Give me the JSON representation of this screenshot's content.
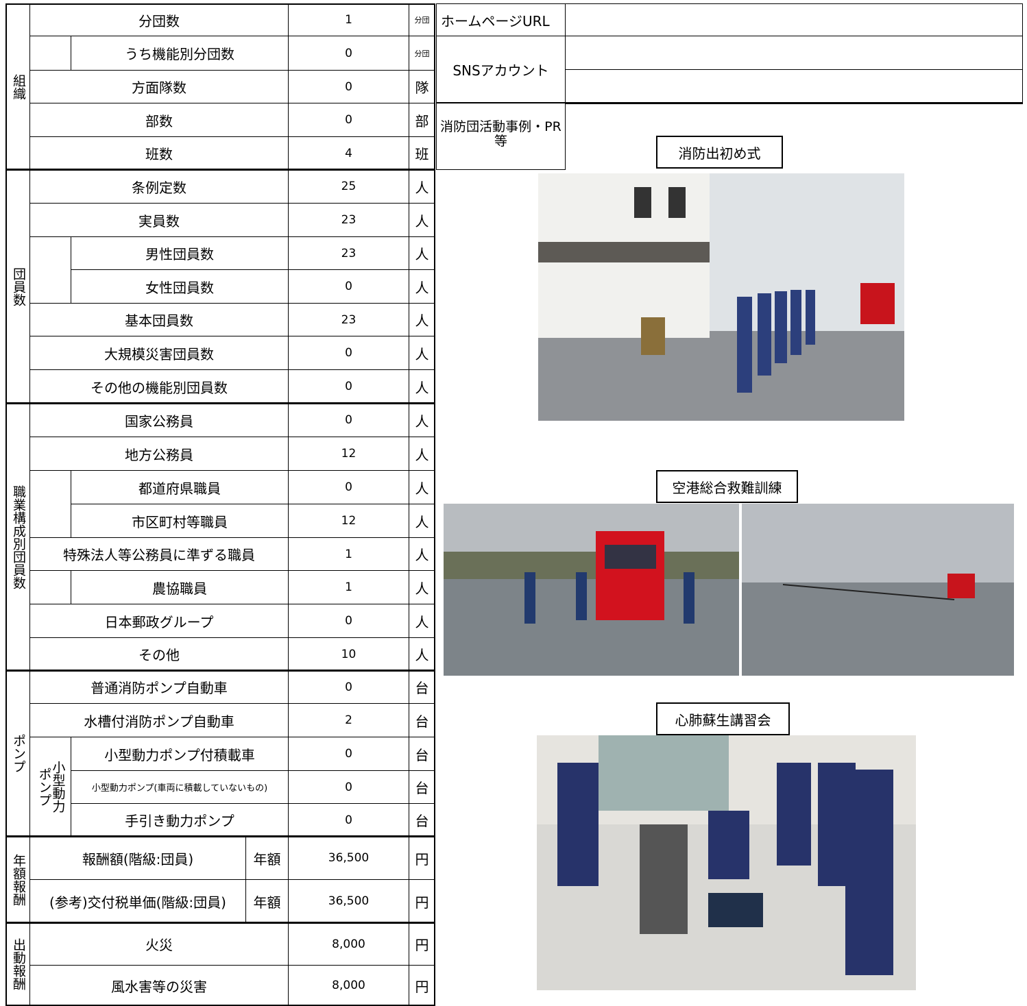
{
  "groups": [
    {
      "label": "組織",
      "rows": [
        {
          "label": "分団数",
          "value": "1",
          "unit": "分団"
        },
        {
          "label": "うち機能別分団数",
          "value": "0",
          "unit": "分団"
        },
        {
          "label": "方面隊数",
          "value": "0",
          "unit": "隊"
        },
        {
          "label": "部数",
          "value": "0",
          "unit": "部"
        },
        {
          "label": "班数",
          "value": "4",
          "unit": "班"
        }
      ]
    },
    {
      "label": "団員数",
      "rows": [
        {
          "label": "条例定数",
          "value": "25",
          "unit": "人"
        },
        {
          "label": "実員数",
          "value": "23",
          "unit": "人"
        },
        {
          "label": "男性団員数",
          "value": "23",
          "unit": "人"
        },
        {
          "label": "女性団員数",
          "value": "0",
          "unit": "人"
        },
        {
          "label": "基本団員数",
          "value": "23",
          "unit": "人"
        },
        {
          "label": "大規模災害団員数",
          "value": "0",
          "unit": "人"
        },
        {
          "label": "その他の機能別団員数",
          "value": "0",
          "unit": "人"
        }
      ]
    },
    {
      "label": "職業構成別団員数",
      "rows": [
        {
          "label": "国家公務員",
          "value": "0",
          "unit": "人"
        },
        {
          "label": "地方公務員",
          "value": "12",
          "unit": "人"
        },
        {
          "label": "都道府県職員",
          "value": "0",
          "unit": "人"
        },
        {
          "label": "市区町村等職員",
          "value": "12",
          "unit": "人"
        },
        {
          "label": "特殊法人等公務員に準ずる職員",
          "value": "1",
          "unit": "人"
        },
        {
          "label": "農協職員",
          "value": "1",
          "unit": "人"
        },
        {
          "label": "日本郵政グループ",
          "value": "0",
          "unit": "人"
        },
        {
          "label": "その他",
          "value": "10",
          "unit": "人"
        }
      ]
    },
    {
      "label": "ポンプ",
      "subgroup_label": "小型動力ポンプ",
      "rows": [
        {
          "label": "普通消防ポンプ自動車",
          "value": "0",
          "unit": "台"
        },
        {
          "label": "水槽付消防ポンプ自動車",
          "value": "2",
          "unit": "台"
        },
        {
          "label": "小型動力ポンプ付積載車",
          "value": "0",
          "unit": "台"
        },
        {
          "label": "小型動力ポンプ(車両に積載していないもの)",
          "value": "0",
          "unit": "台"
        },
        {
          "label": "手引き動力ポンプ",
          "value": "0",
          "unit": "台"
        }
      ]
    },
    {
      "label": "年額報酬",
      "rows": [
        {
          "label": "報酬額(階級:団員)",
          "period": "年額",
          "value": "36,500",
          "unit": "円"
        },
        {
          "label": "(参考)交付税単価(階級:団員)",
          "period": "年額",
          "value": "36,500",
          "unit": "円"
        }
      ]
    },
    {
      "label": "出動報酬",
      "rows": [
        {
          "label": "火災",
          "value": "8,000",
          "unit": "円"
        },
        {
          "label": "風水害等の災害",
          "value": "8,000",
          "unit": "円"
        }
      ]
    }
  ],
  "info": {
    "homepage_label": "ホームページURL",
    "sns_label": "SNSアカウント",
    "activities_label": "消防団活動事例・PR等"
  },
  "activities": [
    {
      "caption": "消防出初め式"
    },
    {
      "caption": "空港総合救難訓練"
    },
    {
      "caption": "心肺蘇生講習会"
    }
  ]
}
